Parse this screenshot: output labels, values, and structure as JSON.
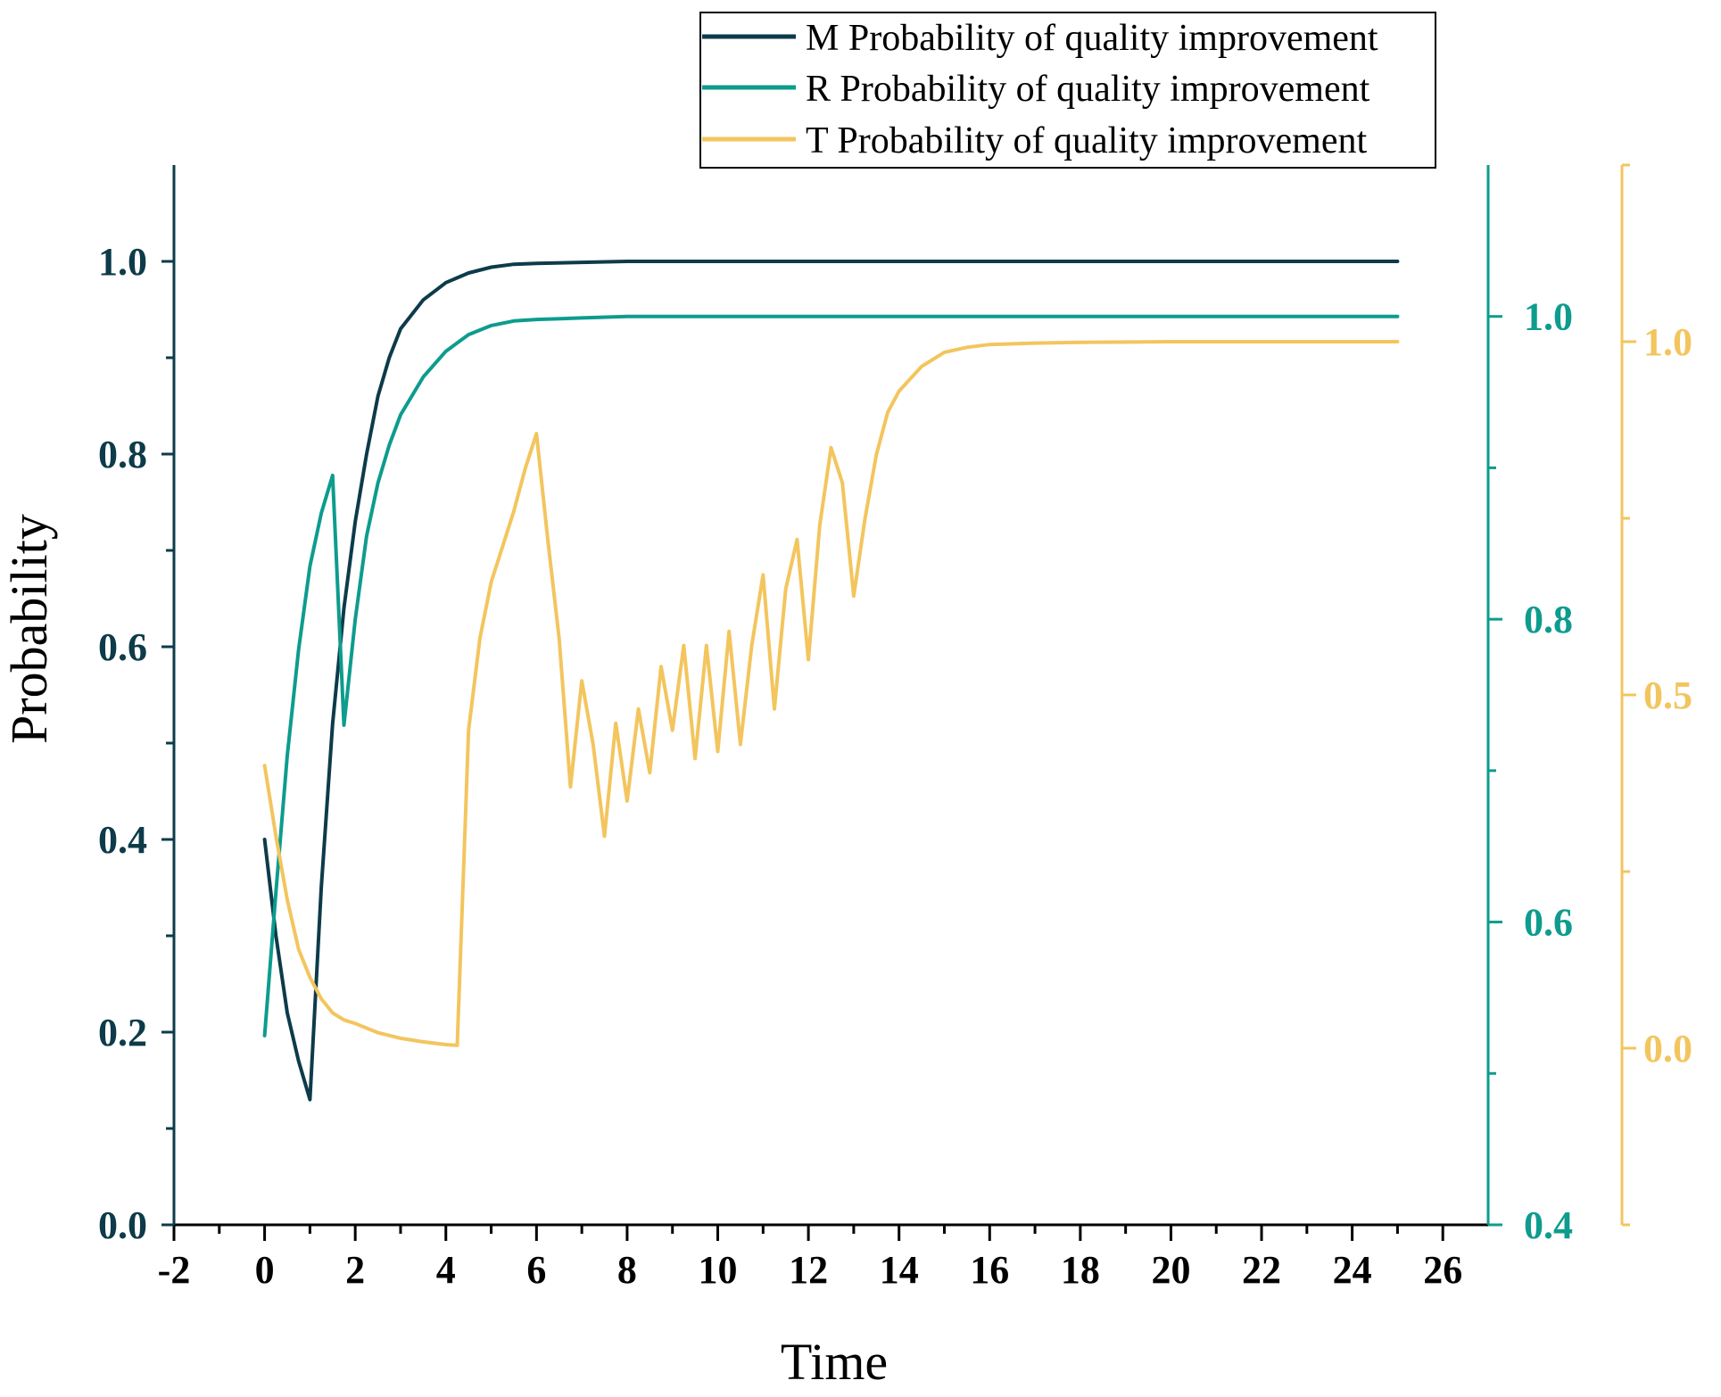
{
  "chart_data": {
    "type": "line",
    "xlabel": "Time",
    "ylabel": "Probability",
    "xlim": [
      -2,
      27
    ],
    "x_ticks": [
      "-2",
      "0",
      "2",
      "4",
      "6",
      "8",
      "10",
      "12",
      "14",
      "16",
      "18",
      "20",
      "22",
      "24",
      "26"
    ],
    "axes": {
      "left": {
        "ylim": [
          0,
          1.1
        ],
        "ticks": [
          "0.0",
          "0.2",
          "0.4",
          "0.6",
          "0.8",
          "1.0"
        ],
        "color": "#0d3b4a"
      },
      "right1": {
        "ylim": [
          0.4,
          1.1
        ],
        "ticks": [
          "0.4",
          "0.6",
          "0.8",
          "1.0"
        ],
        "color": "#0d9c8e"
      },
      "right2": {
        "ylim": [
          -0.25,
          1.25
        ],
        "ticks": [
          "0.0",
          "0.5",
          "1.0"
        ],
        "color": "#f3c55e"
      }
    },
    "series": [
      {
        "name": "M Probability of quality improvement",
        "axis": "left",
        "color": "#0d3b4a",
        "x": [
          0,
          0.25,
          0.5,
          0.75,
          1.0,
          1.25,
          1.5,
          1.75,
          2.0,
          2.25,
          2.5,
          2.75,
          3.0,
          3.5,
          4.0,
          4.5,
          5.0,
          5.5,
          6.0,
          7.0,
          8.0,
          10.0,
          25.0
        ],
        "values": [
          0.4,
          0.3,
          0.22,
          0.17,
          0.13,
          0.35,
          0.52,
          0.64,
          0.73,
          0.8,
          0.86,
          0.9,
          0.93,
          0.96,
          0.978,
          0.988,
          0.994,
          0.997,
          0.998,
          0.999,
          1.0,
          1.0,
          1.0
        ]
      },
      {
        "name": "R Probability of quality improvement",
        "axis": "right1",
        "color": "#0d9c8e",
        "x": [
          0,
          0.25,
          0.5,
          0.75,
          1.0,
          1.25,
          1.5,
          1.75,
          2.0,
          2.25,
          2.5,
          2.75,
          3.0,
          3.5,
          4.0,
          4.5,
          5.0,
          5.5,
          6.0,
          7.0,
          8.0,
          10.0,
          25.0
        ],
        "values": [
          0.525,
          0.62,
          0.71,
          0.78,
          0.835,
          0.87,
          0.895,
          0.73,
          0.8,
          0.855,
          0.89,
          0.915,
          0.935,
          0.96,
          0.977,
          0.988,
          0.994,
          0.997,
          0.998,
          0.999,
          1.0,
          1.0,
          1.0
        ]
      },
      {
        "name": "T Probability of quality improvement",
        "axis": "right2",
        "color": "#f3c55e",
        "x": [
          0,
          0.25,
          0.5,
          0.75,
          1.0,
          1.25,
          1.5,
          1.75,
          2.0,
          2.5,
          3.0,
          3.5,
          4.0,
          4.25,
          4.5,
          4.75,
          5.0,
          5.25,
          5.5,
          5.75,
          6.0,
          6.25,
          6.5,
          6.75,
          7.0,
          7.25,
          7.5,
          7.75,
          8.0,
          8.25,
          8.5,
          8.75,
          9.0,
          9.25,
          9.5,
          9.75,
          10.0,
          10.25,
          10.5,
          10.75,
          11.0,
          11.25,
          11.5,
          11.75,
          12.0,
          12.25,
          12.5,
          12.75,
          13.0,
          13.25,
          13.5,
          13.75,
          14.0,
          14.5,
          15.0,
          15.5,
          16.0,
          17.0,
          18.0,
          20.0,
          25.0
        ],
        "values": [
          0.4,
          0.3,
          0.21,
          0.14,
          0.1,
          0.07,
          0.05,
          0.04,
          0.035,
          0.022,
          0.014,
          0.009,
          0.005,
          0.004,
          0.45,
          0.58,
          0.66,
          0.71,
          0.76,
          0.82,
          0.87,
          0.72,
          0.58,
          0.37,
          0.52,
          0.43,
          0.3,
          0.46,
          0.35,
          0.48,
          0.39,
          0.54,
          0.45,
          0.57,
          0.41,
          0.57,
          0.42,
          0.59,
          0.43,
          0.57,
          0.67,
          0.48,
          0.65,
          0.72,
          0.55,
          0.74,
          0.85,
          0.8,
          0.64,
          0.75,
          0.84,
          0.9,
          0.93,
          0.965,
          0.985,
          0.992,
          0.996,
          0.998,
          0.999,
          1.0,
          1.0
        ]
      }
    ]
  }
}
